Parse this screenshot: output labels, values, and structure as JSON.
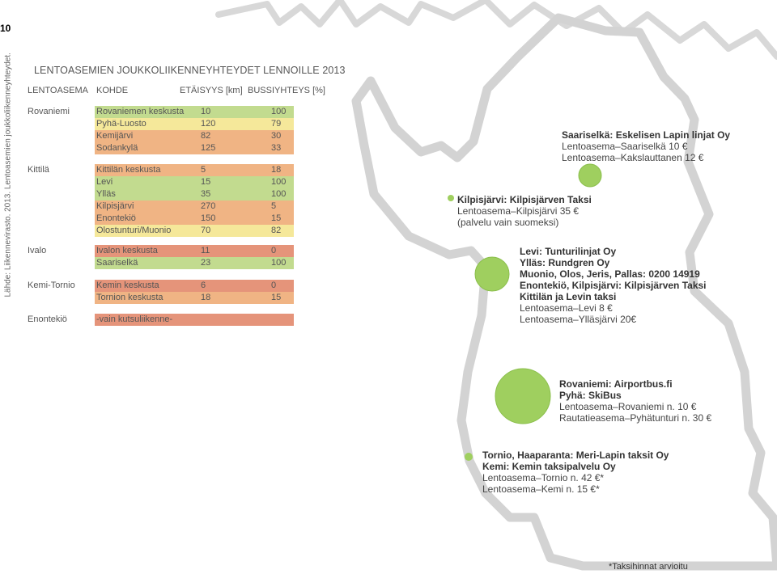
{
  "page_number": "10",
  "source": "Lähde: Liikennevirasto. 2013. Lentoasemien joukkoliikenneyhteydet.",
  "table": {
    "title": "LENTOASEMIEN JOUKKOLIIKENNEYHTEYDET LENNOILLE 2013",
    "headers": {
      "airport": "LENTOASEMA",
      "destination": "KOHDE",
      "distance": "ETÄISYYS [km]",
      "bus": "BUSSIYHTEYS [%]"
    },
    "groups": [
      {
        "airport": "Rovaniemi",
        "rows": [
          {
            "dest": "Rovaniemen keskusta",
            "dist": "10",
            "pct": "100",
            "color": "#c2db8f"
          },
          {
            "dest": "Pyhä-Luosto",
            "dist": "120",
            "pct": "79",
            "color": "#f5e89a"
          },
          {
            "dest": "Kemijärvi",
            "dist": "82",
            "pct": "30",
            "color": "#f0b484"
          },
          {
            "dest": "Sodankylä",
            "dist": "125",
            "pct": "33",
            "color": "#f0b484"
          }
        ]
      },
      {
        "airport": "Kittilä",
        "rows": [
          {
            "dest": "Kittilän keskusta",
            "dist": "5",
            "pct": "18",
            "color": "#f0b484"
          },
          {
            "dest": "Levi",
            "dist": "15",
            "pct": "100",
            "color": "#c2db8f"
          },
          {
            "dest": "Ylläs",
            "dist": "35",
            "pct": "100",
            "color": "#c2db8f"
          },
          {
            "dest": "Kilpisjärvi",
            "dist": "270",
            "pct": "5",
            "color": "#f0b484"
          },
          {
            "dest": "Enontekiö",
            "dist": "150",
            "pct": "15",
            "color": "#f0b484"
          },
          {
            "dest": "Olostunturi/Muonio",
            "dist": "70",
            "pct": "82",
            "color": "#f5e89a"
          }
        ]
      },
      {
        "airport": "Ivalo",
        "rows": [
          {
            "dest": "Ivalon keskusta",
            "dist": "11",
            "pct": "0",
            "color": "#e5947a"
          },
          {
            "dest": "Saariselkä",
            "dist": "23",
            "pct": "100",
            "color": "#c2db8f"
          }
        ]
      },
      {
        "airport": "Kemi-Tornio",
        "rows": [
          {
            "dest": "Kemin keskusta",
            "dist": "6",
            "pct": "0",
            "color": "#e5947a"
          },
          {
            "dest": "Tornion keskusta",
            "dist": "18",
            "pct": "15",
            "color": "#f0b484"
          }
        ]
      },
      {
        "airport": "Enontekiö",
        "rows": [
          {
            "dest": "-vain kutsuliikenne-",
            "dist": "",
            "pct": "",
            "color": "#e5947a"
          }
        ]
      }
    ]
  },
  "map_info": {
    "saariselka": {
      "bold": [
        "Saariselkä: Eskelisen Lapin linjat Oy"
      ],
      "lines": [
        "Lentoasema–Saariselkä 10 €",
        "Lentoasema–Kakslauttanen 12 €"
      ]
    },
    "kilpisjarvi": {
      "bold": [
        "Kilpisjärvi: Kilpisjärven Taksi"
      ],
      "lines": [
        "Lentoasema–Kilpisjärvi 35 €",
        "(palvelu vain suomeksi)"
      ]
    },
    "kittila": {
      "bold": [
        "Levi: Tunturilinjat Oy",
        "Ylläs: Rundgren Oy",
        "Muonio, Olos, Jeris, Pallas: 0200 14919",
        "Enontekiö, Kilpisjärvi: Kilpisjärven Taksi",
        "Kittilän ja Levin taksi"
      ],
      "lines": [
        "Lentoasema–Levi 8 €",
        "Lentoasema–Ylläsjärvi 20€"
      ]
    },
    "rovaniemi": {
      "bold": [
        "Rovaniemi: Airportbus.fi",
        "Pyhä: SkiBus"
      ],
      "lines": [
        "Lentoasema–Rovaniemi n. 10 €",
        "Rautatieasema–Pyhätunturi n. 30 €"
      ]
    },
    "tornio": {
      "bold": [
        "Tornio, Haaparanta: Meri-Lapin taksit Oy",
        "Kemi: Kemin taksipalvelu Oy"
      ],
      "lines": [
        "Lentoasema–Tornio n. 42 €*",
        "Lentoasema–Kemi n. 15 €*"
      ]
    }
  },
  "circle_color": "#9fcf5f",
  "footnote": "*Taksihinnat arvioitu"
}
